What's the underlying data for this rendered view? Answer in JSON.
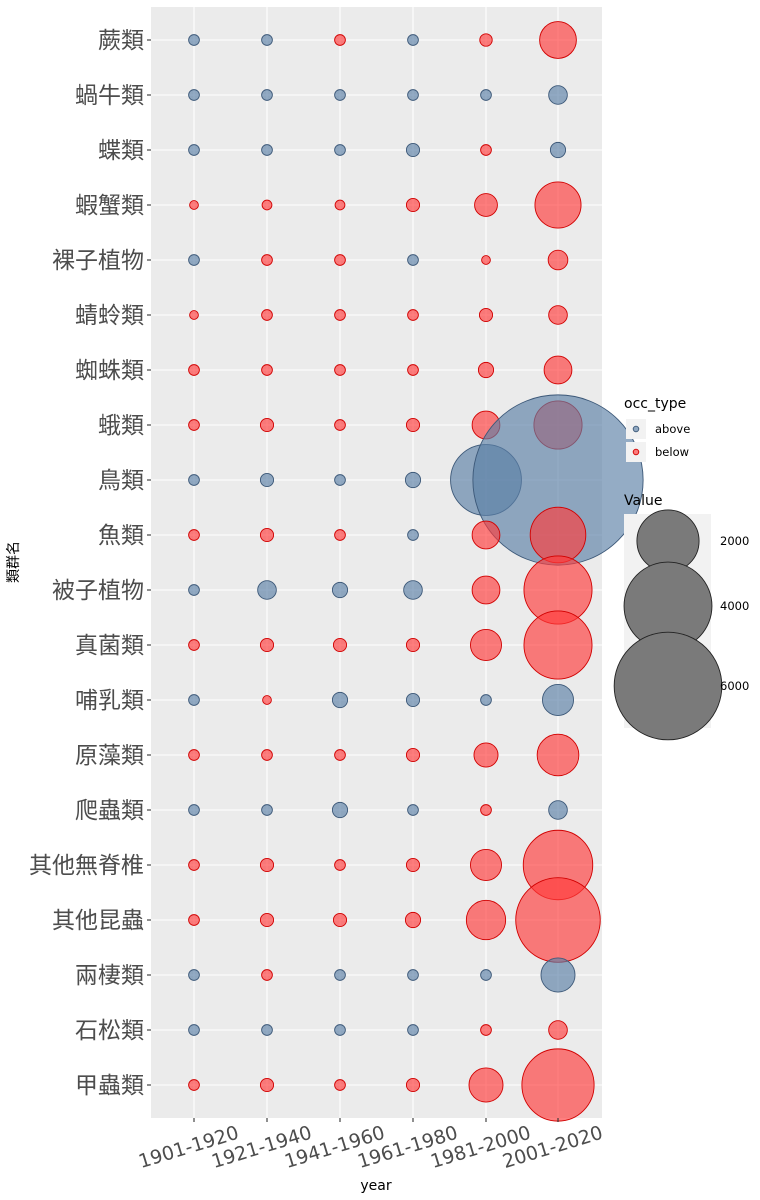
{
  "chart_data": {
    "type": "scatter",
    "xlabel": "year",
    "ylabel": "類群名",
    "x_categories": [
      "1901-1920",
      "1921-1940",
      "1941-1960",
      "1961-1980",
      "1981-2000",
      "2001-2020"
    ],
    "y_categories": [
      "蕨類",
      "蝸牛類",
      "蝶類",
      "蝦蟹類",
      "裸子植物",
      "蜻蛉類",
      "蜘蛛類",
      "蛾類",
      "鳥類",
      "魚類",
      "被子植物",
      "真菌類",
      "哺乳類",
      "原藻類",
      "爬蟲類",
      "其他無脊椎",
      "其他昆蟲",
      "兩棲類",
      "石松類",
      "甲蟲類"
    ],
    "grid": true,
    "colors": {
      "above": "#5b7fa6",
      "below": "#ff3b3b",
      "panel": "#ebebeb",
      "grid": "#ffffff",
      "legend_size_fill": "#7a7a7a"
    },
    "legend_color": {
      "title": "occ_type",
      "placement": "right",
      "items": [
        {
          "key": "above",
          "label": "above"
        },
        {
          "key": "below",
          "label": "below"
        }
      ]
    },
    "legend_size": {
      "title": "Value",
      "placement": "right",
      "items": [
        {
          "value": 2000,
          "label": "2000"
        },
        {
          "value": 4000,
          "label": "4000"
        },
        {
          "value": 6000,
          "label": "6000"
        }
      ]
    },
    "series": [
      {
        "name": "蕨類",
        "types": [
          "above",
          "above",
          "below",
          "above",
          "below",
          "below"
        ],
        "values": [
          60,
          60,
          60,
          60,
          80,
          700
        ]
      },
      {
        "name": "蝸牛類",
        "types": [
          "above",
          "above",
          "above",
          "above",
          "above",
          "above"
        ],
        "values": [
          60,
          60,
          60,
          60,
          60,
          180
        ]
      },
      {
        "name": "蝶類",
        "types": [
          "above",
          "above",
          "above",
          "above",
          "below",
          "above"
        ],
        "values": [
          60,
          60,
          60,
          90,
          60,
          120
        ]
      },
      {
        "name": "蝦蟹類",
        "types": [
          "below",
          "below",
          "below",
          "below",
          "below",
          "below"
        ],
        "values": [
          40,
          50,
          50,
          90,
          270,
          1100
        ]
      },
      {
        "name": "裸子植物",
        "types": [
          "above",
          "below",
          "below",
          "above",
          "below",
          "below"
        ],
        "values": [
          60,
          60,
          60,
          60,
          40,
          200
        ]
      },
      {
        "name": "蜻蛉類",
        "types": [
          "below",
          "below",
          "below",
          "below",
          "below",
          "below"
        ],
        "values": [
          40,
          60,
          60,
          60,
          90,
          180
        ]
      },
      {
        "name": "蜘蛛類",
        "types": [
          "below",
          "below",
          "below",
          "below",
          "below",
          "below"
        ],
        "values": [
          60,
          60,
          60,
          60,
          120,
          400
        ]
      },
      {
        "name": "蛾類",
        "types": [
          "below",
          "below",
          "below",
          "below",
          "below",
          "below"
        ],
        "values": [
          60,
          90,
          60,
          90,
          400,
          1200
        ]
      },
      {
        "name": "鳥類",
        "types": [
          "above",
          "above",
          "above",
          "above",
          "above",
          "above"
        ],
        "values": [
          60,
          90,
          60,
          120,
          2600,
          15000
        ]
      },
      {
        "name": "魚類",
        "types": [
          "below",
          "below",
          "below",
          "above",
          "below",
          "below"
        ],
        "values": [
          60,
          90,
          60,
          60,
          400,
          1600
        ]
      },
      {
        "name": "被子植物",
        "types": [
          "above",
          "above",
          "above",
          "above",
          "below",
          "below"
        ],
        "values": [
          60,
          180,
          120,
          180,
          400,
          2400
        ]
      },
      {
        "name": "真菌類",
        "types": [
          "below",
          "below",
          "below",
          "below",
          "below",
          "below"
        ],
        "values": [
          60,
          90,
          90,
          90,
          500,
          2400
        ]
      },
      {
        "name": "哺乳類",
        "types": [
          "above",
          "below",
          "above",
          "above",
          "above",
          "above"
        ],
        "values": [
          60,
          40,
          120,
          90,
          60,
          500
        ]
      },
      {
        "name": "原藻類",
        "types": [
          "below",
          "below",
          "below",
          "below",
          "below",
          "below"
        ],
        "values": [
          60,
          60,
          60,
          90,
          300,
          900
        ]
      },
      {
        "name": "爬蟲類",
        "types": [
          "above",
          "above",
          "above",
          "above",
          "below",
          "above"
        ],
        "values": [
          60,
          60,
          120,
          60,
          60,
          180
        ]
      },
      {
        "name": "其他無脊椎",
        "types": [
          "below",
          "below",
          "below",
          "below",
          "below",
          "below"
        ],
        "values": [
          60,
          90,
          60,
          90,
          500,
          2500
        ]
      },
      {
        "name": "其他昆蟲",
        "types": [
          "below",
          "below",
          "below",
          "below",
          "below",
          "below"
        ],
        "values": [
          60,
          90,
          90,
          120,
          800,
          3700
        ]
      },
      {
        "name": "兩棲類",
        "types": [
          "above",
          "below",
          "above",
          "above",
          "above",
          "above"
        ],
        "values": [
          60,
          60,
          60,
          60,
          60,
          600
        ]
      },
      {
        "name": "石松類",
        "types": [
          "above",
          "above",
          "above",
          "above",
          "below",
          "below"
        ],
        "values": [
          60,
          60,
          60,
          60,
          60,
          180
        ]
      },
      {
        "name": "甲蟲類",
        "types": [
          "below",
          "below",
          "below",
          "below",
          "below",
          "below"
        ],
        "values": [
          60,
          90,
          60,
          90,
          600,
          2700
        ]
      }
    ]
  }
}
